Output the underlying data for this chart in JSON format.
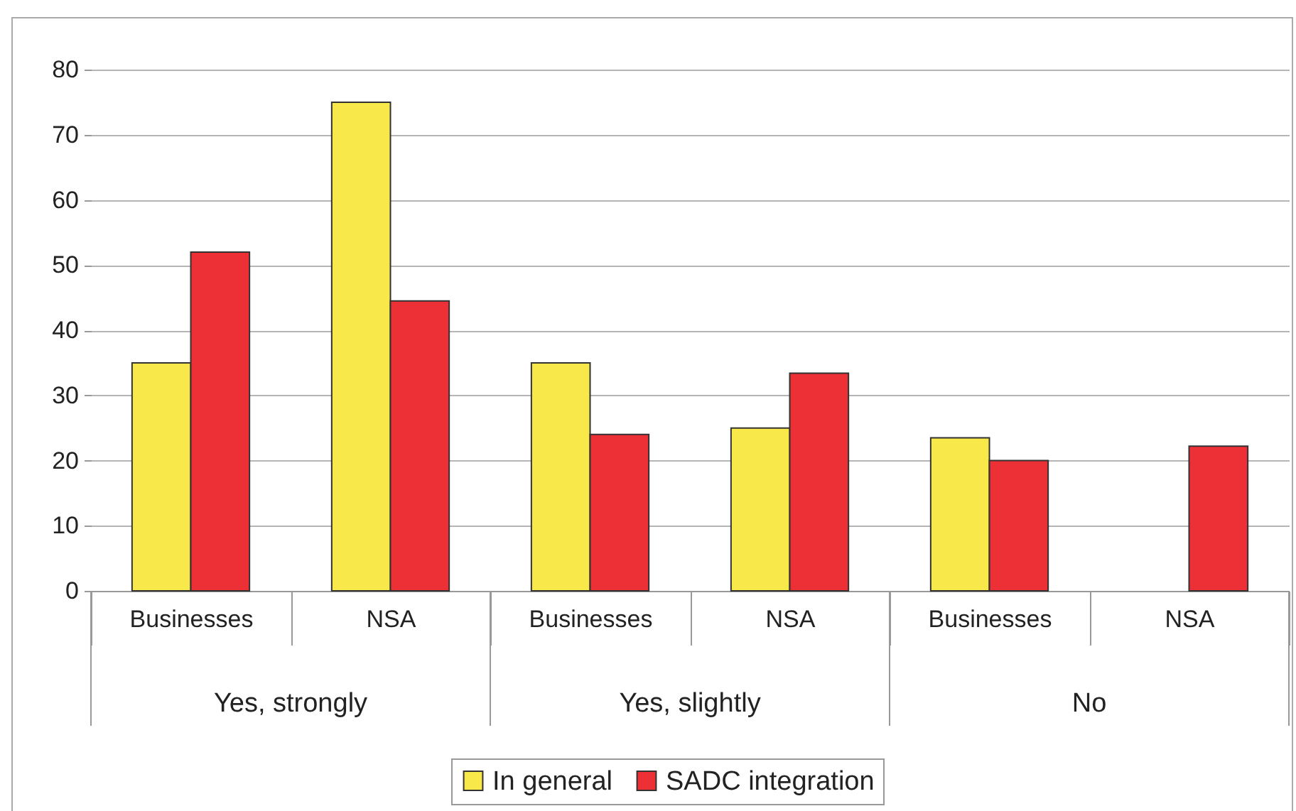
{
  "chart_data": {
    "type": "bar",
    "categories": [
      "Businesses",
      "NSA",
      "Businesses",
      "NSA",
      "Businesses",
      "NSA"
    ],
    "series": [
      {
        "name": "In general",
        "color": "#f8e84a",
        "values": [
          35,
          75,
          35,
          25,
          23.5,
          null
        ]
      },
      {
        "name": "SADC integration",
        "color": "#ec3035",
        "values": [
          52,
          44.5,
          24,
          33.4,
          20,
          22.2
        ]
      }
    ],
    "annotations": [
      "Yes, strongly",
      "Yes, slightly",
      "No"
    ],
    "ylim": [
      0,
      80
    ],
    "yticks": [
      0,
      10,
      20,
      30,
      40,
      50,
      60,
      70,
      80
    ],
    "grid": "y",
    "legend": "bottom"
  }
}
